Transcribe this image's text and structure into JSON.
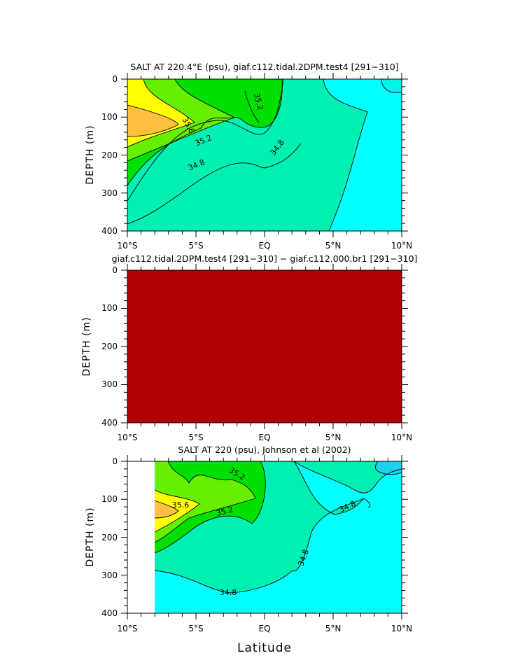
{
  "colors": {
    "c_lt_34_6": "#00ffff",
    "c_34_6_34_8": "#00f5e6",
    "c_34_8_35_0": "#00f0b4",
    "c_35_0_35_2": "#00e000",
    "c_35_2_35_4": "#66f000",
    "c_35_4_35_6": "#ffff00",
    "c_gt_35_6": "#ffc040",
    "c_diff": "#b00000",
    "c_deep_cyan": "#20d0f0"
  },
  "chart_data": [
    {
      "type": "contour",
      "title": "SALT AT 220.4°E (psu), giaf.c112.tidal.2DPM.test4 [291−310]",
      "xlabel": "",
      "ylabel": "DEPTH (m)",
      "x_ticklabels": [
        "10°S",
        "5°S",
        "EQ",
        "5°N",
        "10°N"
      ],
      "y_ticklabels": [
        "0",
        "100",
        "200",
        "300",
        "400"
      ],
      "xlim": [
        -10,
        10
      ],
      "ylim": [
        400,
        0
      ],
      "contour_labels": [
        "35.6",
        "35.2",
        "35.2",
        "34.8",
        "34.8"
      ]
    },
    {
      "type": "heatmap",
      "title": "giaf.c112.tidal.2DPM.test4 [291−310] − giaf.c112.000.br1 [291−310]",
      "xlabel": "",
      "ylabel": "DEPTH (m)",
      "x_ticklabels": [
        "10°S",
        "5°S",
        "EQ",
        "5°N",
        "10°N"
      ],
      "y_ticklabels": [
        "0",
        "100",
        "200",
        "300",
        "400"
      ],
      "xlim": [
        -10,
        10
      ],
      "ylim": [
        400,
        0
      ]
    },
    {
      "type": "contour",
      "title": "SALT AT 220 (psu), Johnson et al (2002)",
      "xlabel": "Latitude",
      "ylabel": "DEPTH (m)",
      "x_ticklabels": [
        "10°S",
        "5°S",
        "EQ",
        "5°N",
        "10°N"
      ],
      "y_ticklabels": [
        "0",
        "100",
        "200",
        "300",
        "400"
      ],
      "xlim": [
        -10,
        10
      ],
      "ylim": [
        400,
        0
      ],
      "contour_labels": [
        "35.2",
        "35.6",
        "35.2",
        "34.8",
        "34.8",
        "34.8"
      ]
    }
  ]
}
